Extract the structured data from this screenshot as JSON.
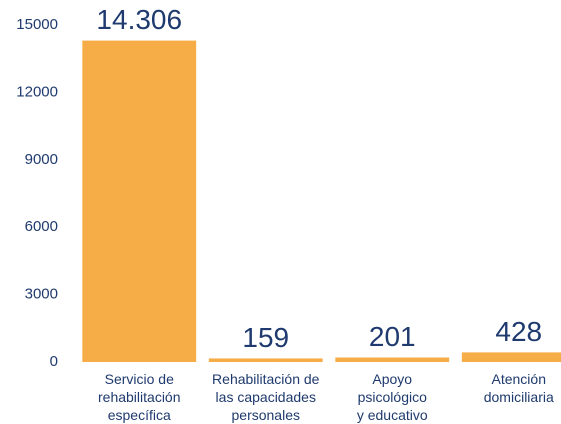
{
  "chart_data": {
    "type": "bar",
    "categories": [
      "Servicio de\nrehabilitación\nespecífica",
      "Rehabilitación de\nlas capacidades\npersonales",
      "Apoyo\npsicológico\ny educativo",
      "Atención\ndomiciliaria"
    ],
    "values": [
      14306,
      159,
      201,
      428
    ],
    "value_labels": [
      "14.306",
      "159",
      "201",
      "428"
    ],
    "color": "#f6ad47",
    "ylim": [
      0,
      15000
    ],
    "yticks": [
      0,
      3000,
      6000,
      9000,
      12000,
      15000
    ],
    "grid": false
  }
}
